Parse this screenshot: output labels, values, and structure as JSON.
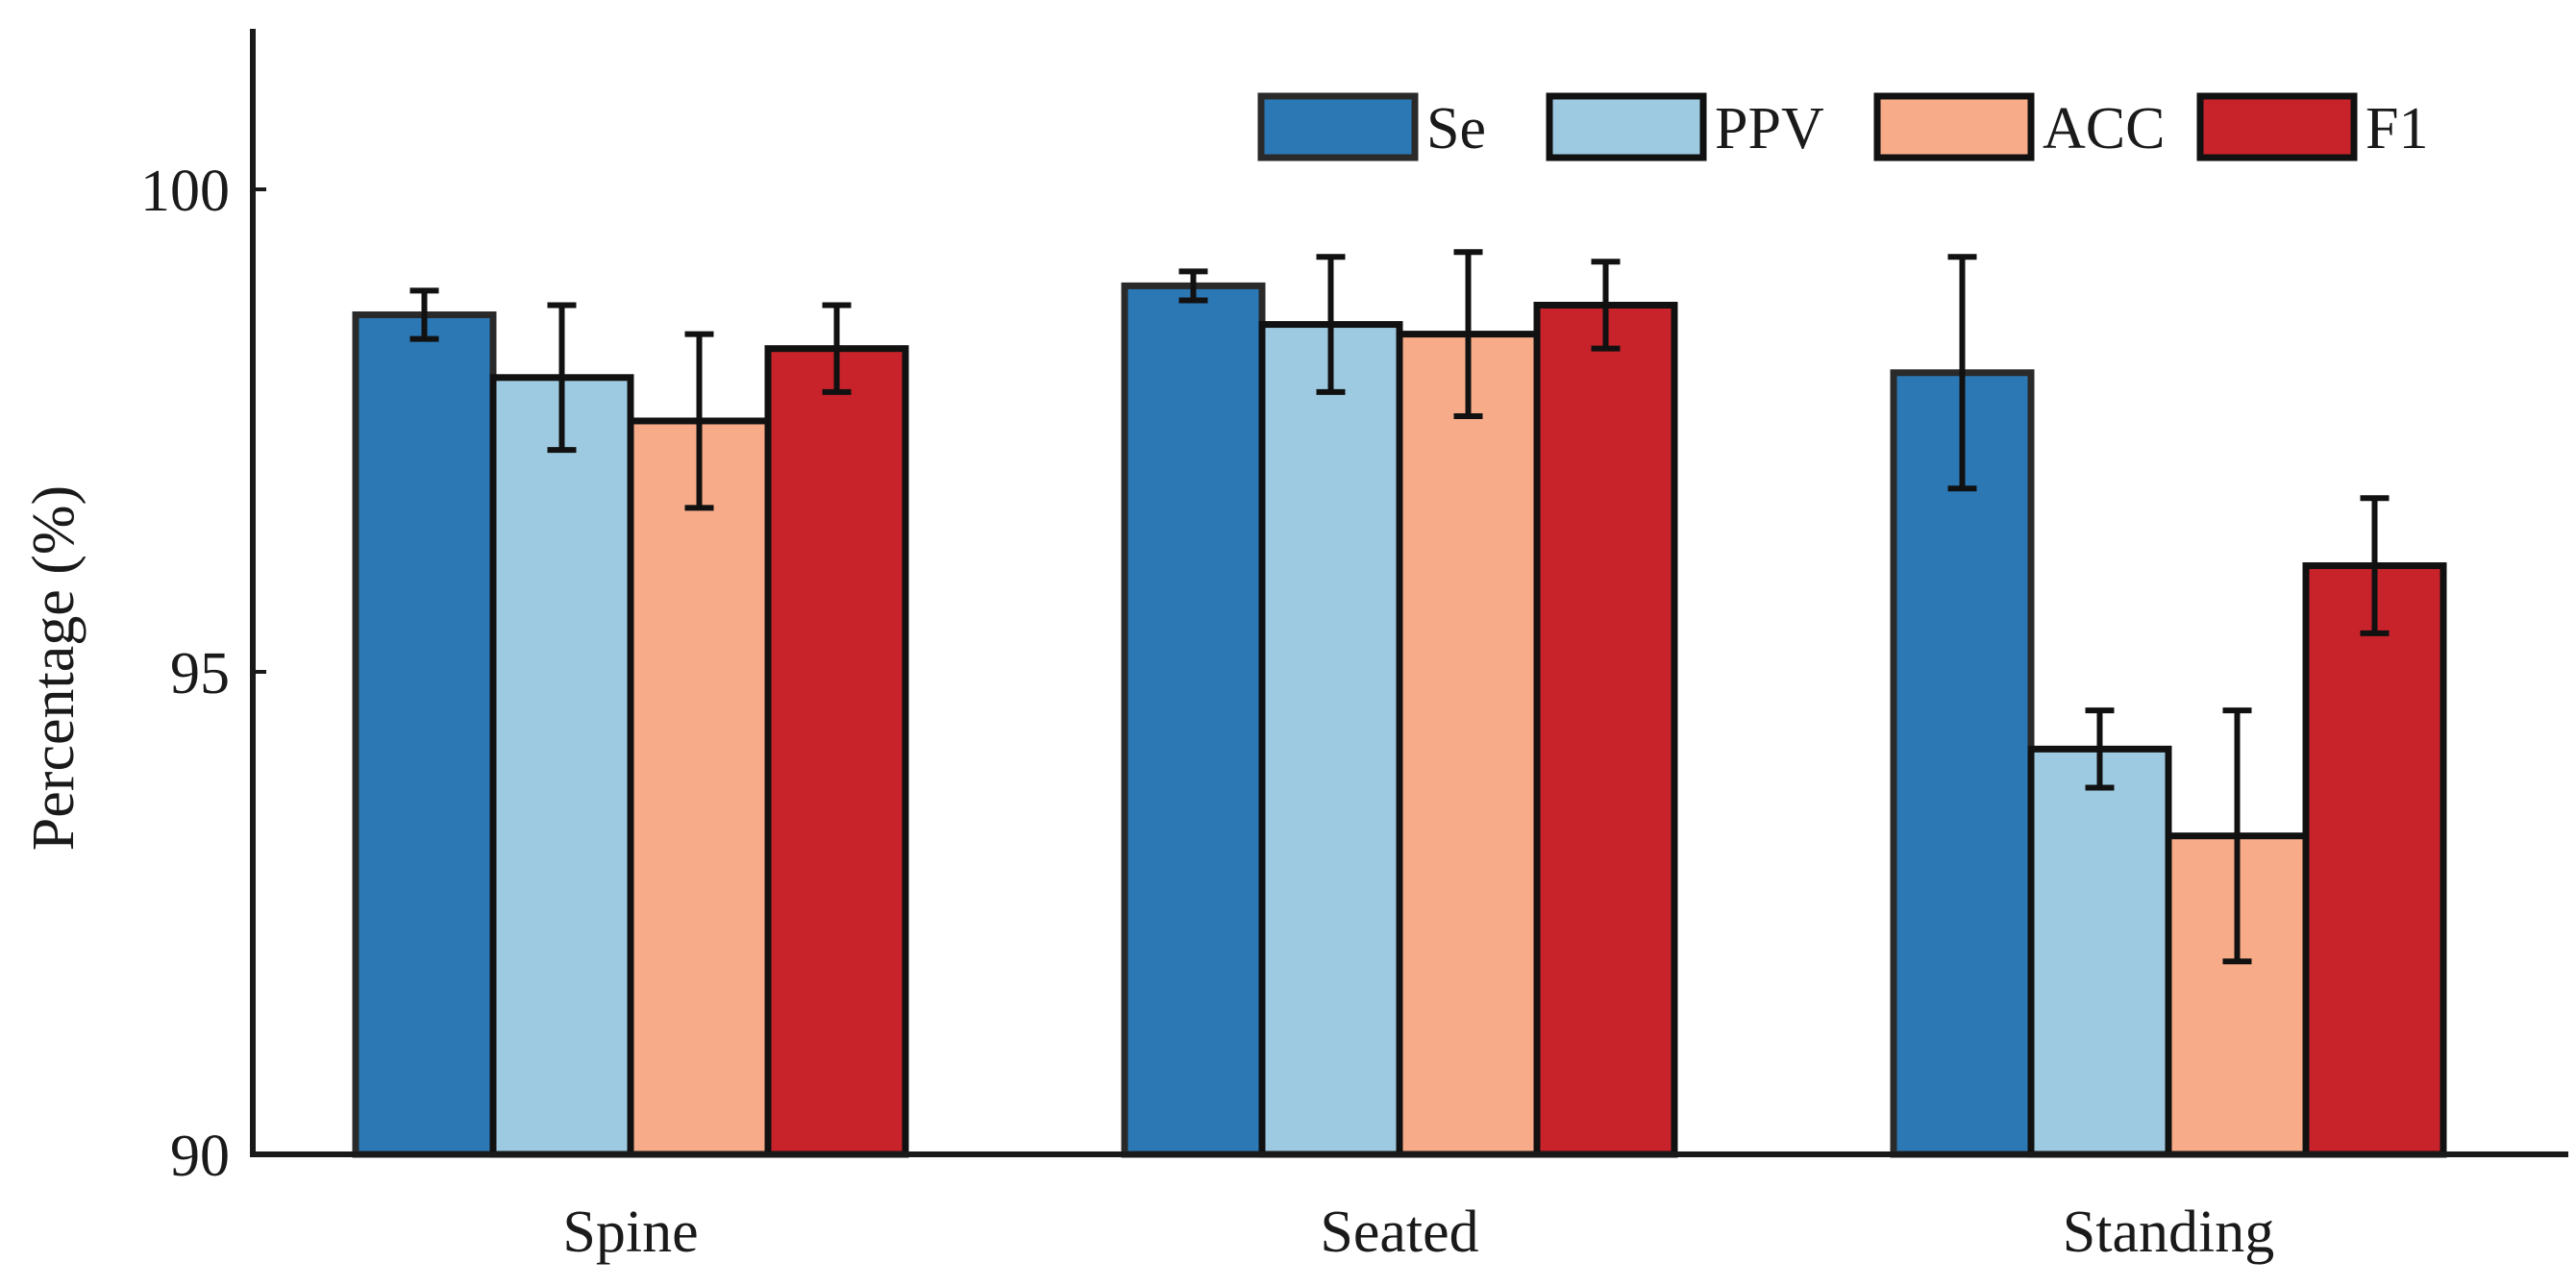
{
  "chart_data": {
    "type": "bar",
    "title": "",
    "xlabel": "",
    "ylabel": "Percentage (%)",
    "ylim": [
      90,
      102
    ],
    "yticks": [
      90,
      95,
      100
    ],
    "categories": [
      "Spine",
      "Seated",
      "Standing"
    ],
    "series": [
      {
        "name": "Se",
        "color": "#2b78b5",
        "values": [
          98.7,
          99.0,
          98.1
        ],
        "errors": [
          0.25,
          0.15,
          1.2
        ]
      },
      {
        "name": "PPV",
        "color": "#9ecae1",
        "values": [
          98.05,
          98.6,
          94.2
        ],
        "errors": [
          0.75,
          0.7,
          0.4
        ]
      },
      {
        "name": "ACC",
        "color": "#f7ab89",
        "values": [
          97.6,
          98.5,
          93.3
        ],
        "errors": [
          0.9,
          0.85,
          1.3
        ]
      },
      {
        "name": "F1",
        "color": "#c8232b",
        "values": [
          98.35,
          98.8,
          96.1
        ],
        "errors": [
          0.45,
          0.45,
          0.7
        ]
      }
    ],
    "legend_position": "top-right",
    "grid": false
  }
}
